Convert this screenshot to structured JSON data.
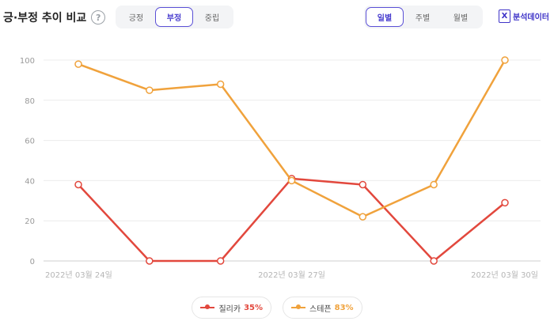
{
  "header": {
    "title": "긍·부정 추이 비교",
    "help_icon": "?",
    "sentiment_tabs": [
      {
        "label": "긍정",
        "active": false
      },
      {
        "label": "부정",
        "active": true
      },
      {
        "label": "중립",
        "active": false
      }
    ],
    "period_tabs": [
      {
        "label": "일별",
        "active": true
      },
      {
        "label": "주별",
        "active": false
      },
      {
        "label": "월별",
        "active": false
      }
    ],
    "download_label": "분석데이터",
    "download_icon": "excel-icon"
  },
  "legend": [
    {
      "name": "질리카",
      "pct": "35%",
      "color": "#e2483d"
    },
    {
      "name": "스테픈",
      "pct": "83%",
      "color": "#f0a23c"
    }
  ],
  "chart_data": {
    "type": "line",
    "x": [
      "2022-03-24",
      "2022-03-25",
      "2022-03-26",
      "2022-03-27",
      "2022-03-28",
      "2022-03-29",
      "2022-03-30"
    ],
    "xtick_labels": [
      "2022년 03월 24일",
      "2022년 03월 27일",
      "2022년 03월 30일"
    ],
    "ylim": [
      0,
      100
    ],
    "yticks": [
      0,
      20,
      40,
      60,
      80,
      100
    ],
    "grid": true,
    "legend_position": "bottom",
    "series": [
      {
        "name": "질리카",
        "color": "#e2483d",
        "values": [
          38,
          0,
          0,
          41,
          38,
          0,
          29
        ]
      },
      {
        "name": "스테픈",
        "color": "#f0a23c",
        "values": [
          98,
          85,
          88,
          40,
          22,
          38,
          100
        ]
      }
    ]
  }
}
